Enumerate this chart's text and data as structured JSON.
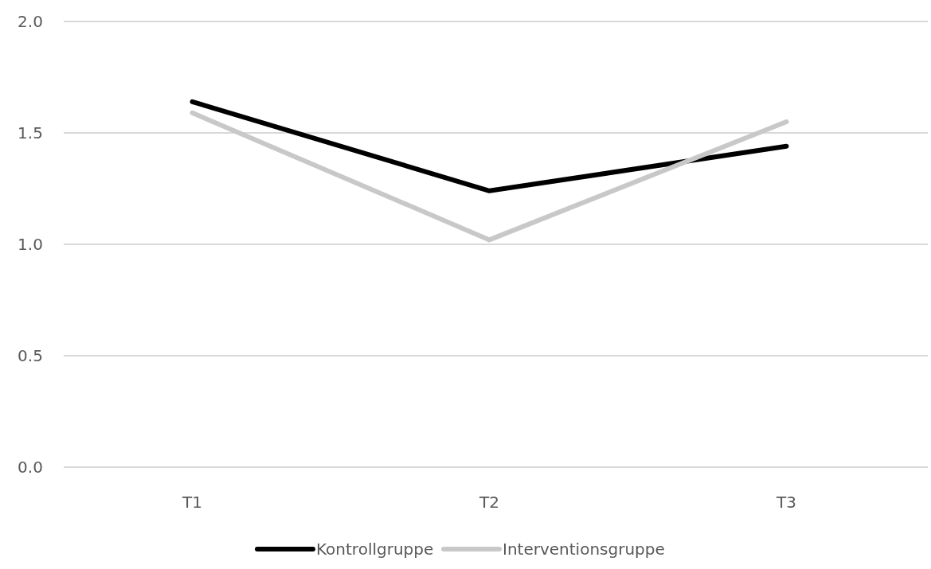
{
  "chart_data": {
    "type": "line",
    "categories": [
      "T1",
      "T2",
      "T3"
    ],
    "series": [
      {
        "name": "Kontrollgruppe",
        "color": "#000000",
        "values": [
          1.64,
          1.24,
          1.44
        ]
      },
      {
        "name": "Interventionsgruppe",
        "color": "#c8c8c8",
        "values": [
          1.59,
          1.02,
          1.55
        ]
      }
    ],
    "ylim": [
      0,
      2
    ],
    "yticks": [
      {
        "value": 0,
        "label": "0.0"
      },
      {
        "value": 0.5,
        "label": "0.5"
      },
      {
        "value": 1,
        "label": "1.0"
      },
      {
        "value": 1.5,
        "label": "1.5"
      },
      {
        "value": 2,
        "label": "2.0"
      }
    ],
    "grid": "y",
    "legend": "bottom",
    "marker": "none",
    "line_style": "solid"
  }
}
